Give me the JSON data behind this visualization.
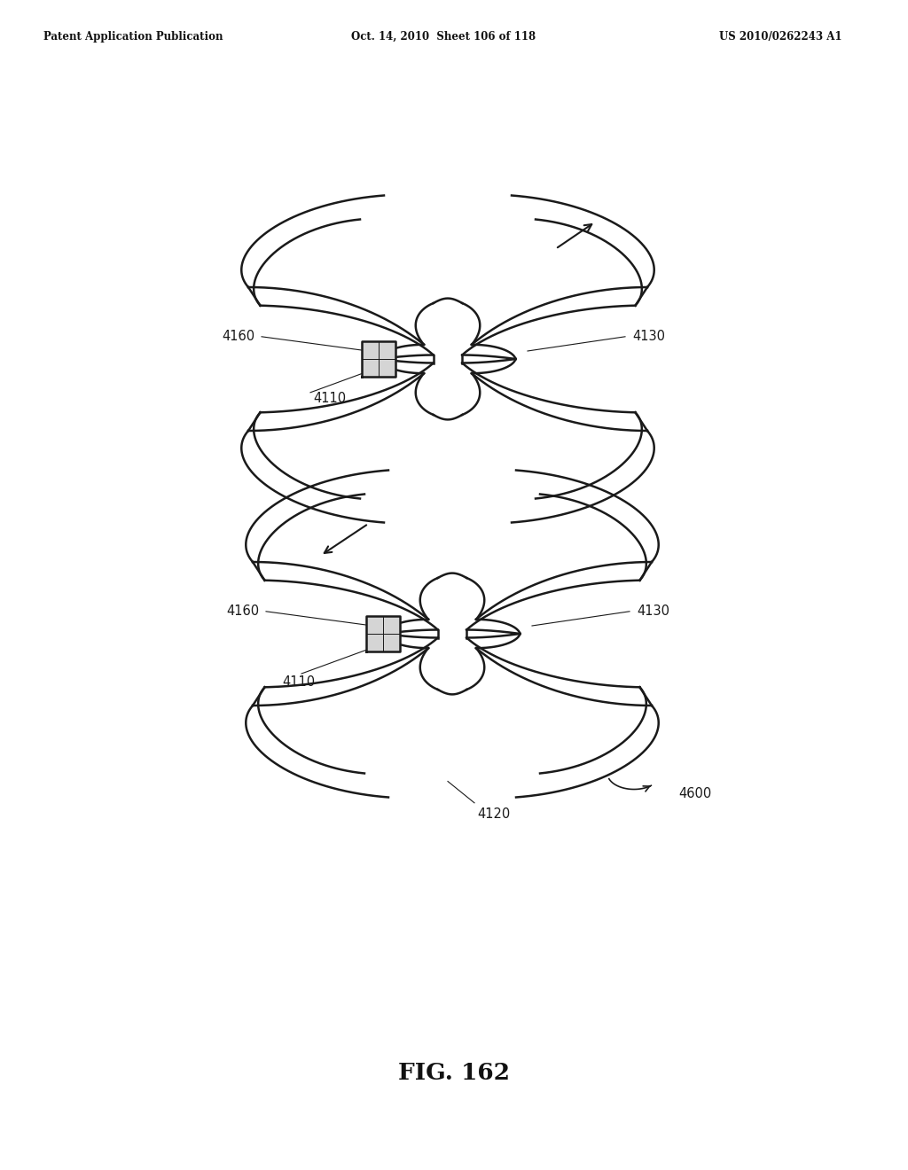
{
  "title": "FIG. 162",
  "header_left": "Patent Application Publication",
  "header_middle": "Oct. 14, 2010  Sheet 106 of 118",
  "header_right": "US 2010/0262243 A1",
  "labels": {
    "4160_top_left": "4160",
    "4110_top": "4110",
    "4130_top_right": "4130",
    "4160_bot_left": "4160",
    "4110_bot": "4110",
    "4120_bot": "4120",
    "4130_bot_right": "4130",
    "4600_bot": "4600"
  },
  "background_color": "#ffffff",
  "line_color": "#1a1a1a",
  "line_width": 1.8
}
